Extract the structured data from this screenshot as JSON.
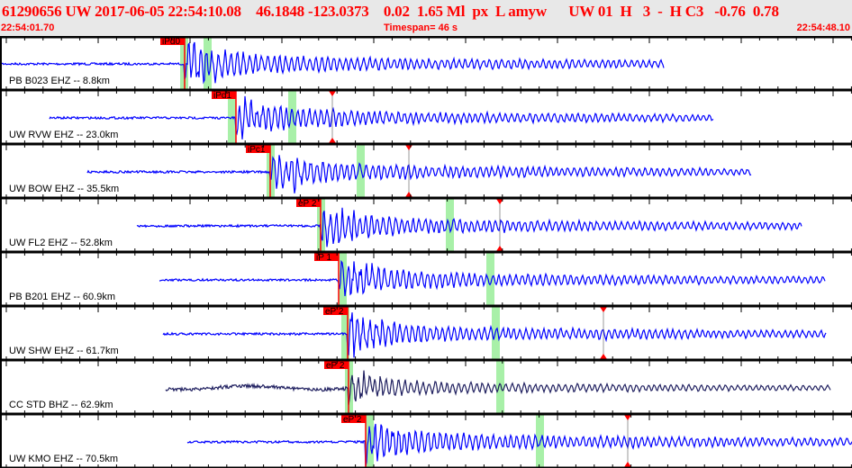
{
  "header": {
    "event_id": "61290656",
    "network": "UW",
    "datetime": "2017-06-05 22:54:10.08",
    "lat": "46.1848",
    "lon": "-123.0373",
    "depth": "0.02",
    "magnitude": "1.65 Ml",
    "flags": "px  L amyw",
    "source": "UW 01  H   3  -  H C3",
    "val1": "-0.76",
    "val2": "0.78",
    "start_time": "22:54:01.70",
    "timespan": "Timespan=  46 s",
    "end_time": "22:54:48.10"
  },
  "colors": {
    "trace": "#0000ff",
    "trace_bb": "#202060",
    "pick": "#ff0000",
    "window": "#a8f0a8",
    "header_text": "#ff0000"
  },
  "traces": [
    {
      "label": "PB B023 EHZ -- 8.8km",
      "pick": "iPd0"
    },
    {
      "label": "UW RVW EHZ -- 23.0km",
      "pick": "iPd1"
    },
    {
      "label": "UW BOW EHZ -- 35.5km",
      "pick": "iPc1"
    },
    {
      "label": "UW FL2 EHZ -- 52.8km",
      "pick": "eP 2"
    },
    {
      "label": "PB B201 EHZ -- 60.9km",
      "pick": "iP 1"
    },
    {
      "label": "UW SHW EHZ -- 61.7km",
      "pick": "eP 2"
    },
    {
      "label": "CC STD BHZ -- 62.9km",
      "pick": "eP 2"
    },
    {
      "label": "UW KMO EHZ -- 70.5km",
      "pick": "eP 2"
    }
  ]
}
